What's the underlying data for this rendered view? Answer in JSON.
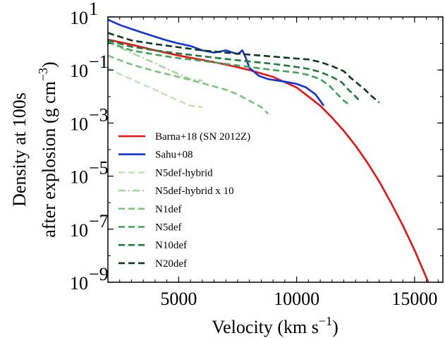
{
  "chart_data": {
    "type": "line",
    "xlabel": "Velocity (km s",
    "xlabel_sup": "−1",
    "xlabel_end": ")",
    "ylabel_line1": "Density at 100s",
    "ylabel_line2": "after explosion (g cm",
    "ylabel_sup": "−3",
    "ylabel_end": ")",
    "xlim": [
      2000,
      16200
    ],
    "ylim_log10": [
      -9,
      1
    ],
    "y_scale": "log",
    "x_ticks": [
      {
        "value": 5000,
        "label": "5000"
      },
      {
        "value": 10000,
        "label": "10000"
      },
      {
        "value": 15000,
        "label": "15000"
      }
    ],
    "y_ticks": [
      {
        "exp": 1,
        "base": "10",
        "sup": "1"
      },
      {
        "exp": -1,
        "base": "10",
        "sup": "−1"
      },
      {
        "exp": -3,
        "base": "10",
        "sup": "−3"
      },
      {
        "exp": -5,
        "base": "10",
        "sup": "−5"
      },
      {
        "exp": -7,
        "base": "10",
        "sup": "−7"
      },
      {
        "exp": -9,
        "base": "10",
        "sup": "−9"
      }
    ],
    "legend_position": "lower-left",
    "series": [
      {
        "name": "Barna+18 (SN 2012Z)",
        "color": "#ee1111",
        "dash": "solid",
        "points": [
          [
            2000,
            1.4
          ],
          [
            3000,
            0.9
          ],
          [
            4000,
            0.55
          ],
          [
            5000,
            0.35
          ],
          [
            6000,
            0.24
          ],
          [
            7000,
            0.16
          ],
          [
            8000,
            0.1
          ],
          [
            9000,
            0.055
          ],
          [
            10000,
            0.022
          ],
          [
            10500,
            0.01
          ],
          [
            11000,
            0.0045
          ],
          [
            11500,
            0.0016
          ],
          [
            12000,
            0.00051
          ],
          [
            12500,
            0.00014
          ],
          [
            13000,
            3.2e-05
          ],
          [
            13500,
            6.3e-06
          ],
          [
            14000,
            1e-06
          ],
          [
            14500,
            1.4e-07
          ],
          [
            15000,
            1.6e-08
          ],
          [
            15500,
            1.5e-09
          ],
          [
            15900,
            2e-10
          ]
        ]
      },
      {
        "name": "Sahu+08",
        "color": "#1133dd",
        "dash": "solid",
        "points": [
          [
            2000,
            7.9
          ],
          [
            2500,
            5.0
          ],
          [
            3000,
            3.5
          ],
          [
            3500,
            2.5
          ],
          [
            4000,
            1.8
          ],
          [
            4500,
            1.3
          ],
          [
            5000,
            1.0
          ],
          [
            5500,
            0.8
          ],
          [
            6000,
            0.55
          ],
          [
            6500,
            0.45
          ],
          [
            7000,
            0.55
          ],
          [
            7300,
            0.45
          ],
          [
            7500,
            0.4
          ],
          [
            7700,
            0.55
          ],
          [
            7850,
            0.28
          ],
          [
            8000,
            0.12
          ],
          [
            8400,
            0.06
          ],
          [
            8800,
            0.045
          ],
          [
            9200,
            0.04
          ],
          [
            9600,
            0.035
          ],
          [
            10000,
            0.03
          ],
          [
            10400,
            0.022
          ],
          [
            10800,
            0.012
          ],
          [
            11150,
            0.0045
          ]
        ]
      },
      {
        "name": "N5def-hybrid",
        "color": "#c0e6b8",
        "dash": "dashed",
        "points": [
          [
            2000,
            0.12
          ],
          [
            2500,
            0.07
          ],
          [
            3000,
            0.045
          ],
          [
            3500,
            0.028
          ],
          [
            4000,
            0.018
          ],
          [
            4500,
            0.011
          ],
          [
            5000,
            0.007
          ],
          [
            5500,
            0.0045
          ],
          [
            6000,
            0.004
          ]
        ]
      },
      {
        "name": "N5def-hybrid x 10",
        "color": "#a3d99a",
        "dash": "dashdot",
        "points": [
          [
            2000,
            1.2
          ],
          [
            2500,
            0.7
          ],
          [
            3000,
            0.45
          ],
          [
            3500,
            0.28
          ],
          [
            4000,
            0.18
          ],
          [
            4500,
            0.11
          ],
          [
            5000,
            0.07
          ],
          [
            5500,
            0.045
          ],
          [
            6000,
            0.04
          ]
        ]
      },
      {
        "name": "N1def",
        "color": "#7cc47a",
        "dash": "dashed",
        "points": [
          [
            2000,
            0.35
          ],
          [
            3000,
            0.16
          ],
          [
            4000,
            0.09
          ],
          [
            5000,
            0.055
          ],
          [
            6000,
            0.032
          ],
          [
            7000,
            0.018
          ],
          [
            7500,
            0.012
          ],
          [
            8000,
            0.007
          ],
          [
            8500,
            0.004
          ],
          [
            8800,
            0.0022
          ]
        ]
      },
      {
        "name": "N5def",
        "color": "#41a35a",
        "dash": "dashed",
        "points": [
          [
            2000,
            1.1
          ],
          [
            3000,
            0.55
          ],
          [
            4000,
            0.38
          ],
          [
            5000,
            0.28
          ],
          [
            6000,
            0.22
          ],
          [
            7000,
            0.17
          ],
          [
            8000,
            0.13
          ],
          [
            9000,
            0.1
          ],
          [
            10000,
            0.08
          ],
          [
            10500,
            0.065
          ],
          [
            11000,
            0.045
          ],
          [
            11400,
            0.025
          ],
          [
            11700,
            0.013
          ],
          [
            12000,
            0.007
          ],
          [
            12300,
            0.0045
          ]
        ]
      },
      {
        "name": "N10def",
        "color": "#1f7a3d",
        "dash": "dashed",
        "points": [
          [
            2000,
            1.3
          ],
          [
            3000,
            0.75
          ],
          [
            4000,
            0.55
          ],
          [
            5000,
            0.42
          ],
          [
            6000,
            0.33
          ],
          [
            7000,
            0.26
          ],
          [
            8000,
            0.21
          ],
          [
            9000,
            0.17
          ],
          [
            10000,
            0.13
          ],
          [
            10500,
            0.11
          ],
          [
            11000,
            0.085
          ],
          [
            11500,
            0.055
          ],
          [
            11900,
            0.035
          ],
          [
            12200,
            0.018
          ],
          [
            12500,
            0.01
          ],
          [
            12700,
            0.0065
          ]
        ]
      },
      {
        "name": "N20def",
        "color": "#0c3b1e",
        "dash": "dashed",
        "points": [
          [
            2000,
            2.5
          ],
          [
            3000,
            1.3
          ],
          [
            4000,
            0.95
          ],
          [
            5000,
            0.72
          ],
          [
            6000,
            0.55
          ],
          [
            7000,
            0.45
          ],
          [
            8000,
            0.38
          ],
          [
            9000,
            0.32
          ],
          [
            10000,
            0.27
          ],
          [
            10500,
            0.25
          ],
          [
            11000,
            0.2
          ],
          [
            11500,
            0.14
          ],
          [
            12000,
            0.09
          ],
          [
            12300,
            0.05
          ],
          [
            12600,
            0.03
          ],
          [
            12900,
            0.018
          ],
          [
            13200,
            0.01
          ],
          [
            13500,
            0.006
          ]
        ]
      }
    ]
  }
}
